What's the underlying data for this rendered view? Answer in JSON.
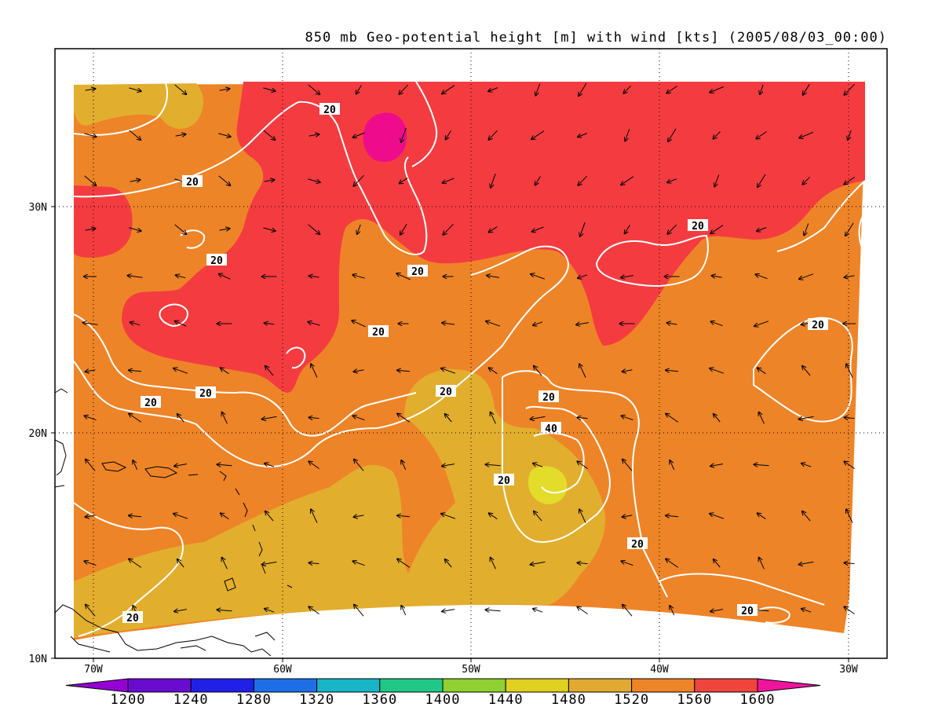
{
  "map": {
    "title": "850 mb Geo-potential height [m] with wind [kts] (2005/08/03_00:00)",
    "lon_labels": [
      "70W",
      "60W",
      "50W",
      "40W",
      "30W"
    ],
    "lat_labels": [
      "30N",
      "20N",
      "10N"
    ],
    "contour_labels": [
      "20",
      "20",
      "20",
      "20",
      "20",
      "20",
      "20",
      "20",
      "20",
      "20",
      "20",
      "20",
      "40",
      "20",
      "20",
      "20"
    ]
  },
  "colorbar": {
    "levels": [
      "1200",
      "1240",
      "1280",
      "1320",
      "1360",
      "1400",
      "1440",
      "1480",
      "1520",
      "1560",
      "1600"
    ],
    "colors": [
      "#9400d3",
      "#6a0ccf",
      "#2020e8",
      "#1e6ee8",
      "#18b4c8",
      "#20c888",
      "#90d030",
      "#e0d020",
      "#e0aa30",
      "#ee8428",
      "#f0443c",
      "#f0149c"
    ]
  },
  "fill_colors": {
    "h1480": "#e3dc2a",
    "h1520": "#e2ae2e",
    "h1560": "#ee8428",
    "h1600": "#f43c40",
    "h1640": "#ee0c8c"
  }
}
